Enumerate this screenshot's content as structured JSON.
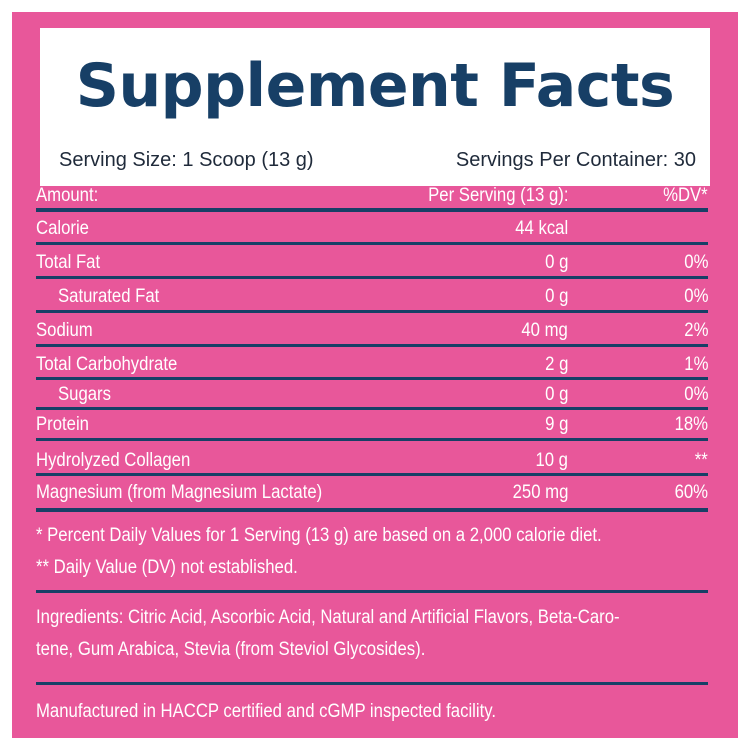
{
  "title": "Supplement Facts",
  "serving_size": "Serving Size: 1 Scoop (13 g)",
  "servings_per_container": "Servings Per Container: 30",
  "header_row": {
    "name": "Amount:",
    "amount": "Per Serving (13 g):",
    "dv": "%DV*"
  },
  "nutrients": [
    {
      "name": "Calorie",
      "amount": "44 kcal",
      "dv": ""
    },
    {
      "name": "Total Fat",
      "amount": "0 g",
      "dv": "0%"
    },
    {
      "name": "Saturated Fat",
      "amount": "0 g",
      "dv": "0%"
    },
    {
      "name": "Sodium",
      "amount": "40 mg",
      "dv": "2%"
    },
    {
      "name": "Total Carbohydrate",
      "amount": "2 g",
      "dv": "1%"
    },
    {
      "name": "Sugars",
      "amount": "0 g",
      "dv": "0%"
    },
    {
      "name": "Protein",
      "amount": "9 g",
      "dv": "18%"
    },
    {
      "name": "Hydrolyzed Collagen",
      "amount": "10 g",
      "dv": "**"
    },
    {
      "name": "Magnesium (from Magnesium Lactate)",
      "amount": "250 mg",
      "dv": "60%"
    }
  ],
  "footnotes": [
    "* Percent Daily Values for 1 Serving (13 g) are based on a 2,000 calorie diet.",
    "** Daily Value (DV) not established."
  ],
  "ingredients": [
    "Ingredients: Citric Acid, Ascorbic Acid, Natural and Artificial Flavors, Beta-Caro-",
    "tene, Gum Arabica, Stevia (from Steviol Glycosides)."
  ],
  "manufactured": "Manufactured in HACCP certified and cGMP inspected facility.",
  "colors": {
    "background": "#e8579a",
    "rule": "#173f66",
    "title": "#173f66",
    "header_box": "#ffffff"
  }
}
